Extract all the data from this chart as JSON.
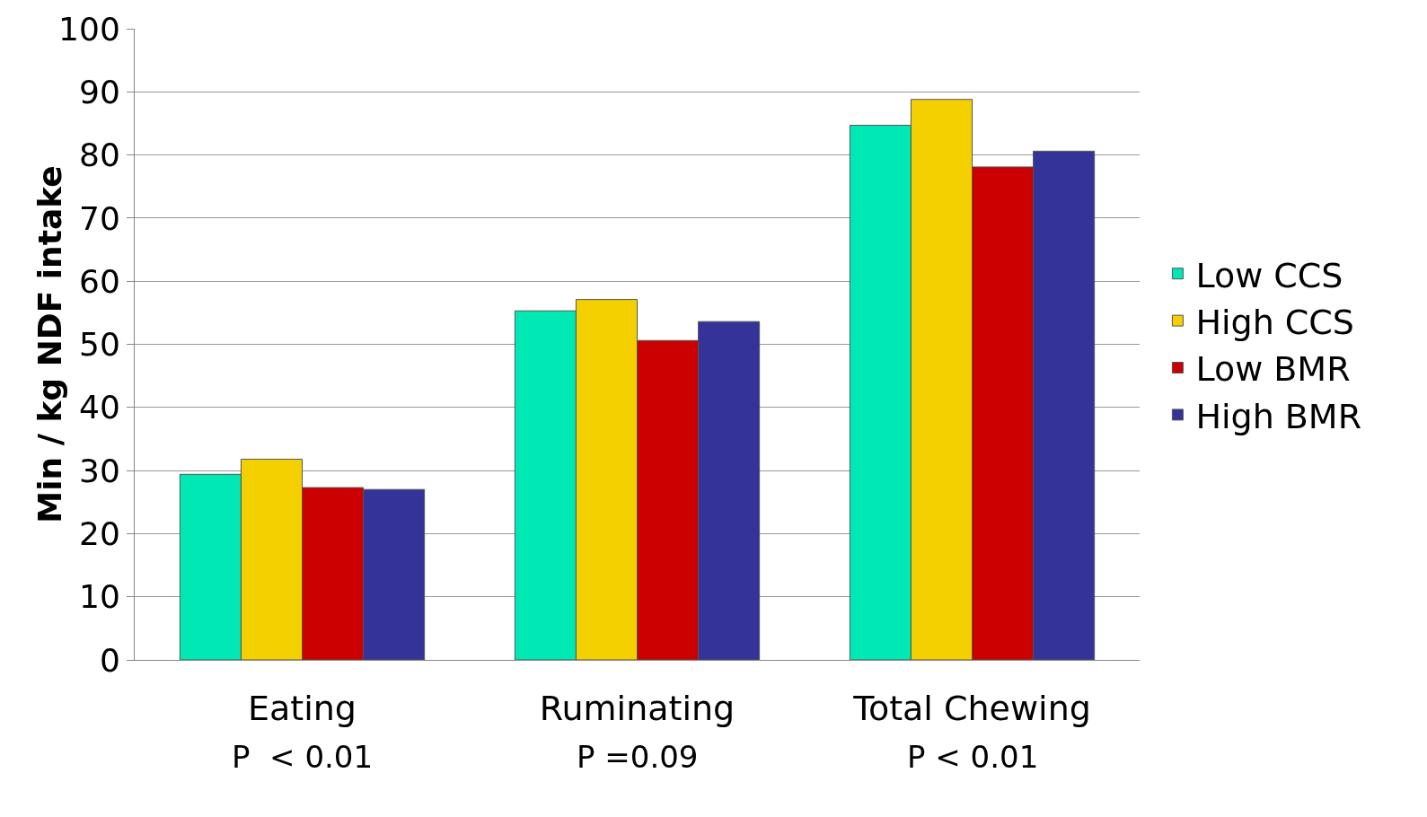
{
  "chart_data": {
    "type": "bar",
    "ylabel": "Min / kg NDF intake",
    "categories": [
      "Eating",
      "Ruminating",
      "Total Chewing"
    ],
    "series": [
      {
        "name": "Low CCS",
        "color": "#00e8b4",
        "values": [
          29.4,
          55.3,
          84.7
        ]
      },
      {
        "name": "High CCS",
        "color": "#f5d000",
        "values": [
          31.8,
          57.1,
          88.8
        ]
      },
      {
        "name": "Low BMR",
        "color": "#cc0000",
        "values": [
          27.3,
          50.6,
          78.1
        ]
      },
      {
        "name": "High BMR",
        "color": "#333399",
        "values": [
          27.0,
          53.6,
          80.6
        ]
      }
    ],
    "ylim": [
      0,
      100
    ],
    "yticks": [
      0,
      10,
      20,
      30,
      40,
      50,
      60,
      70,
      80,
      90,
      100
    ],
    "grid": "y",
    "legend": "right",
    "annotations": [
      "P  < 0.01",
      "P =0.09",
      "P < 0.01"
    ]
  }
}
